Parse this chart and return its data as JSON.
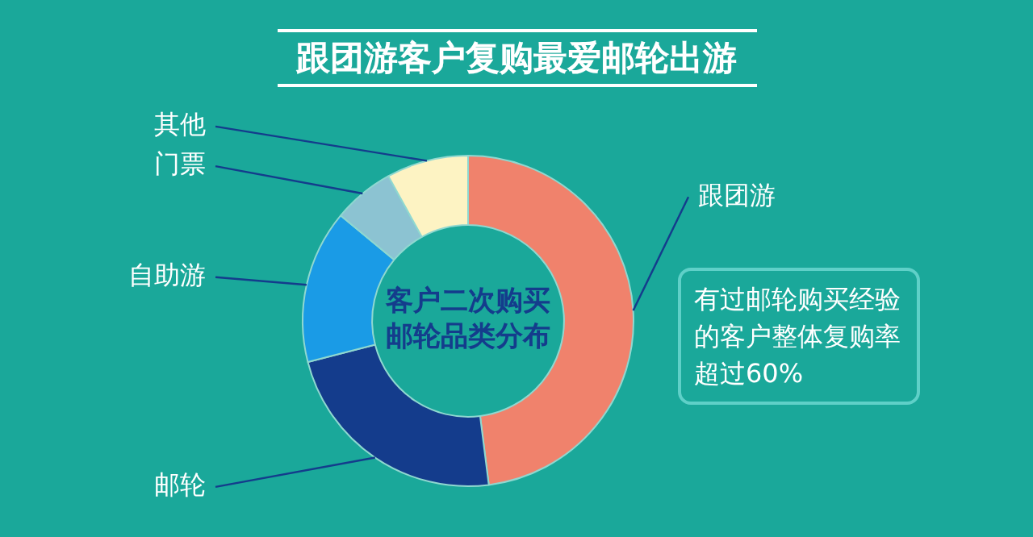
{
  "chart_data": {
    "type": "donut",
    "title": "跟团游客户复购最爱邮轮出游",
    "subtitle": "客户二次购买邮轮品类分布",
    "categories": [
      "跟团游",
      "邮轮",
      "自助游",
      "门票",
      "其他"
    ],
    "values": [
      48,
      23,
      15,
      6,
      8
    ],
    "colors": [
      "#f0826c",
      "#143c8c",
      "#1a9be6",
      "#8cc3d2",
      "#fdf3c3"
    ],
    "legend": false,
    "annotations": [
      "有过邮轮购买经验的客户整体复购率超过60%"
    ]
  }
}
